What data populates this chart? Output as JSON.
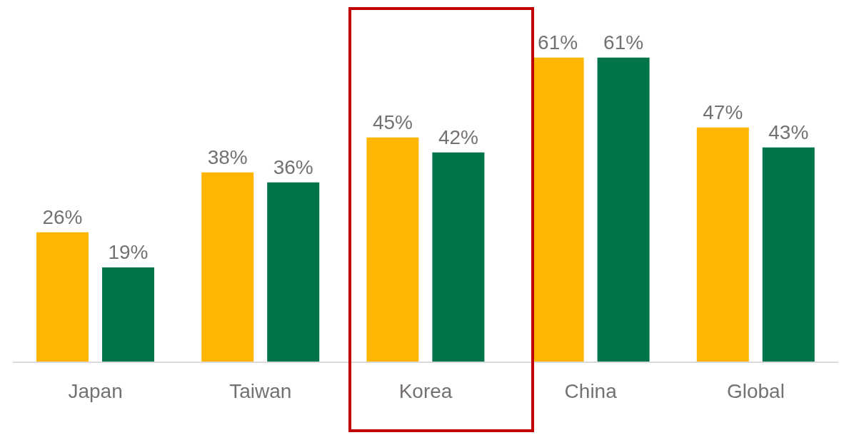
{
  "chart_data": {
    "type": "bar",
    "categories": [
      "Japan",
      "Taiwan",
      "Korea",
      "China",
      "Global"
    ],
    "series": [
      {
        "color": "#ffb600",
        "values": [
          26,
          38,
          45,
          61,
          47
        ],
        "value_labels": [
          "26%",
          "38%",
          "45%",
          "61%",
          "47%"
        ]
      },
      {
        "color": "#00754a",
        "values": [
          19,
          36,
          42,
          61,
          43
        ],
        "value_labels": [
          "19%",
          "36%",
          "42%",
          "61%",
          "43%"
        ]
      }
    ],
    "grid": false,
    "legend": false
  }
}
